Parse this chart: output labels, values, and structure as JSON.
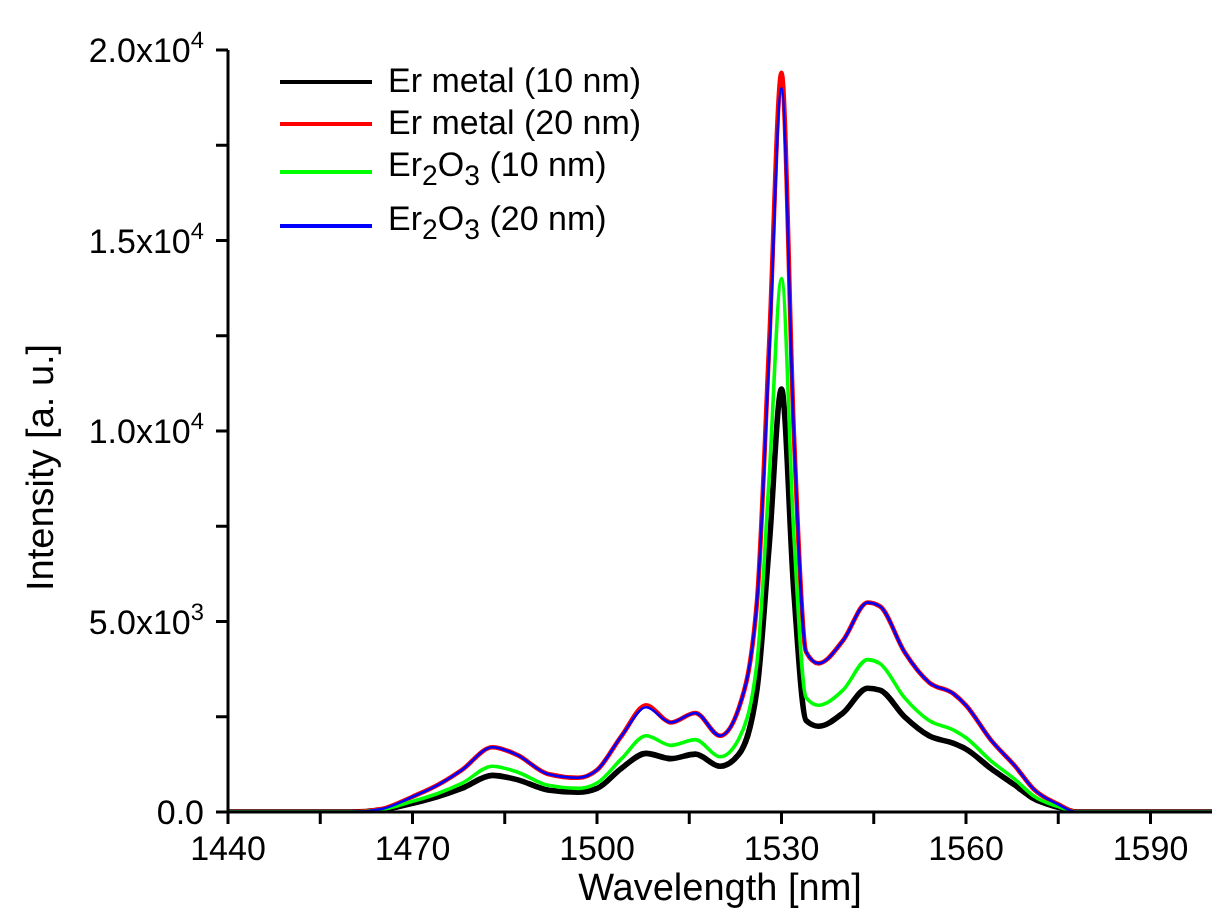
{
  "chart_data": {
    "type": "line",
    "xlabel": "Wavelength [nm]",
    "ylabel": "Intensity [a. u.]",
    "x": [
      1440,
      1460,
      1465,
      1470,
      1474,
      1478,
      1483,
      1487,
      1492,
      1497,
      1500,
      1504,
      1508,
      1512,
      1516,
      1520,
      1523,
      1526,
      1528,
      1530,
      1532,
      1534,
      1536,
      1540,
      1544,
      1546,
      1550,
      1554,
      1558,
      1560,
      1564,
      1568,
      1571,
      1575,
      1578,
      1590,
      1600
    ],
    "series": [
      {
        "name": "Er metal (10 nm)",
        "color": "#000000",
        "values": [
          0,
          0,
          50,
          230,
          400,
          620,
          960,
          850,
          580,
          520,
          620,
          1150,
          1540,
          1400,
          1520,
          1200,
          1500,
          3200,
          7000,
          11100,
          5800,
          2400,
          2250,
          2600,
          3250,
          3200,
          2500,
          2000,
          1800,
          1650,
          1150,
          700,
          350,
          120,
          0,
          0,
          0
        ]
      },
      {
        "name": "Er metal (20 nm)",
        "color": "#ff0000",
        "values": [
          0,
          0,
          80,
          400,
          700,
          1100,
          1700,
          1500,
          1000,
          900,
          1100,
          2000,
          2800,
          2350,
          2600,
          2000,
          2700,
          5500,
          12300,
          19400,
          10000,
          4200,
          3900,
          4500,
          5500,
          5400,
          4200,
          3400,
          3100,
          2800,
          1900,
          1200,
          600,
          200,
          0,
          0,
          0
        ]
      },
      {
        "name": "Er$_{2}$O$_{3}$ (10 nm)",
        "color": "#00ff00",
        "values": [
          0,
          0,
          60,
          280,
          480,
          750,
          1200,
          1050,
          700,
          620,
          760,
          1400,
          2000,
          1750,
          1900,
          1450,
          1900,
          3900,
          8800,
          14000,
          7300,
          3000,
          2800,
          3200,
          4000,
          3900,
          3000,
          2400,
          2150,
          1950,
          1350,
          850,
          420,
          140,
          0,
          0,
          0
        ]
      },
      {
        "name": "Er$_{2}$O$_{3}$ (20 nm)",
        "color": "#0000ff",
        "values": [
          0,
          0,
          80,
          400,
          700,
          1100,
          1700,
          1500,
          1000,
          900,
          1100,
          2000,
          2750,
          2350,
          2600,
          2000,
          2700,
          5500,
          12000,
          19000,
          10000,
          4200,
          3900,
          4500,
          5500,
          5400,
          4200,
          3400,
          3100,
          2800,
          1900,
          1200,
          600,
          200,
          0,
          0,
          0
        ]
      }
    ],
    "xlim": [
      1440,
      1600
    ],
    "xticks": [
      1440,
      {
        "value": 1455,
        "label": null
      },
      1470,
      {
        "value": 1485,
        "label": null
      },
      1500,
      {
        "value": 1515,
        "label": null
      },
      1530,
      {
        "value": 1545,
        "label": null
      },
      1560,
      {
        "value": 1575,
        "label": null
      },
      1590
    ],
    "ylim": [
      0,
      20000
    ],
    "yticks": [
      {
        "value": 0,
        "label": "0.0"
      },
      {
        "value": 2500,
        "label": null
      },
      {
        "value": 5000,
        "label": "5.0x10$^{3}$"
      },
      {
        "value": 7500,
        "label": null
      },
      {
        "value": 10000,
        "label": "1.0x10$^{4}$"
      },
      {
        "value": 12500,
        "label": null
      },
      {
        "value": 15000,
        "label": "1.5x10$^{4}$"
      },
      {
        "value": 17500,
        "label": null
      },
      {
        "value": 20000,
        "label": "2.0x10$^{4}$"
      }
    ],
    "legend": "top left",
    "grid": false,
    "marker": "none",
    "line_style": "solid"
  }
}
